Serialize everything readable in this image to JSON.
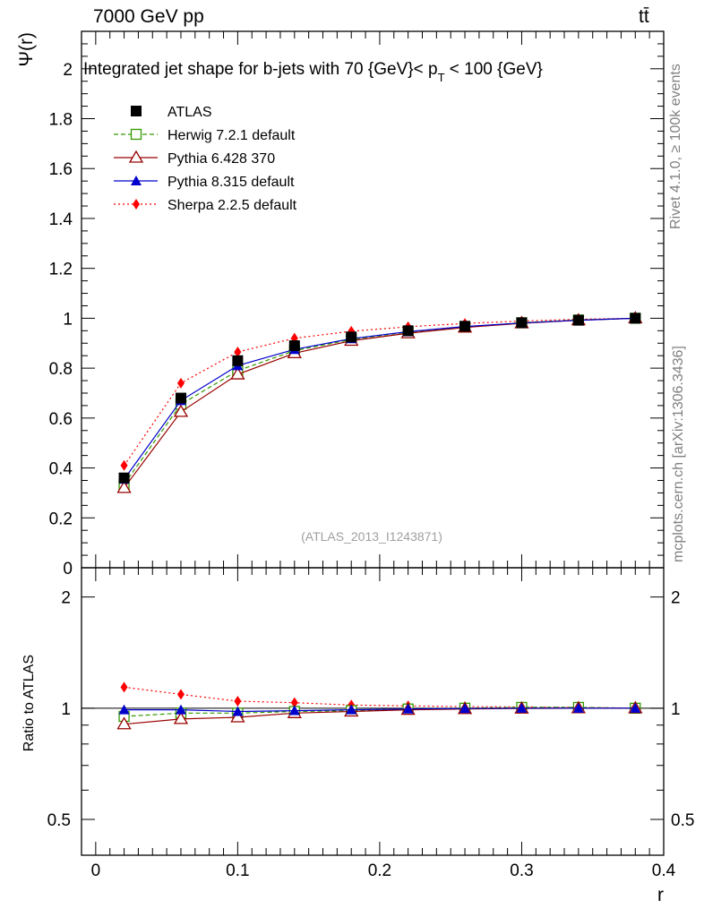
{
  "header": {
    "left": "7000 GeV pp",
    "right": "tt̄"
  },
  "side_labels": {
    "rivet": "Rivet 4.1.0, ≥ 100k events",
    "source": "mcplots.cern.ch [arXiv:1306.3436]"
  },
  "colors": {
    "atlas": "#000000",
    "herwig": "#339900",
    "pythia6": "#990000",
    "pythia8": "#0000cc",
    "sherpa": "#ff0000",
    "watermark": "#a0a0a0"
  },
  "chart_data": [
    {
      "type": "line",
      "title": "Integrated jet shape for b-jets with 70 {GeV}< p_T < 100 {GeV}",
      "title_parts": {
        "before": "Integrated jet shape for b-jets with 70 {GeV}< p",
        "sub": "T",
        "after": " < 100 {GeV}"
      },
      "ylabel": "Ψ(r)",
      "xlabel": "",
      "ylim": [
        0,
        2.15
      ],
      "yticks": [
        0,
        0.2,
        0.4,
        0.6,
        0.8,
        1,
        1.2,
        1.4,
        1.6,
        1.8,
        2
      ],
      "ytick_labels": [
        "0",
        "0.2",
        "0.4",
        "0.6",
        "0.8",
        "1",
        "1.2",
        "1.4",
        "1.6",
        "1.8",
        "2"
      ],
      "xlim": [
        -0.01,
        0.4
      ],
      "watermark": "(ATLAS_2013_I1243871)",
      "legend_position": "top-left",
      "x": [
        0.02,
        0.06,
        0.1,
        0.14,
        0.18,
        0.22,
        0.26,
        0.3,
        0.34,
        0.38
      ],
      "series": [
        {
          "name": "ATLAS",
          "marker": "square",
          "values": [
            0.36,
            0.68,
            0.83,
            0.89,
            0.925,
            0.95,
            0.968,
            0.982,
            0.992,
            1.0
          ]
        },
        {
          "name": "Herwig 7.2.1 default",
          "marker": "open-square",
          "values": [
            0.335,
            0.655,
            0.79,
            0.87,
            0.915,
            0.945,
            0.965,
            0.982,
            0.993,
            1.0
          ]
        },
        {
          "name": "Pythia 6.428 370",
          "marker": "open-triangle",
          "values": [
            0.32,
            0.625,
            0.775,
            0.86,
            0.91,
            0.94,
            0.963,
            0.98,
            0.992,
            1.0
          ]
        },
        {
          "name": "Pythia 8.315 default",
          "marker": "triangle",
          "values": [
            0.355,
            0.67,
            0.81,
            0.875,
            0.918,
            0.946,
            0.967,
            0.981,
            0.992,
            1.0
          ]
        },
        {
          "name": "Sherpa 2.2.5 default",
          "marker": "diamond",
          "values": [
            0.41,
            0.74,
            0.865,
            0.92,
            0.948,
            0.966,
            0.979,
            0.989,
            0.996,
            1.0
          ]
        }
      ]
    },
    {
      "type": "line",
      "title": "",
      "ylabel": "Ratio to ATLAS",
      "xlabel": "r",
      "ylim": [
        0.4,
        2.4
      ],
      "yscale": "log",
      "yticks": [
        0.5,
        1,
        2
      ],
      "ytick_labels": [
        "0.5",
        "1",
        "2"
      ],
      "xlim": [
        -0.01,
        0.4
      ],
      "xticks": [
        0,
        0.1,
        0.2,
        0.3,
        0.4
      ],
      "xtick_labels": [
        "0",
        "0.1",
        "0.2",
        "0.3",
        "0.4"
      ],
      "x": [
        0.02,
        0.06,
        0.1,
        0.14,
        0.18,
        0.22,
        0.26,
        0.3,
        0.34,
        0.38
      ],
      "series": [
        {
          "name": "Herwig 7.2.1 default",
          "marker": "open-square",
          "values": [
            0.95,
            0.97,
            0.97,
            0.98,
            0.985,
            0.995,
            1.0,
            1.005,
            1.005,
            1.0
          ]
        },
        {
          "name": "Pythia 6.428 370",
          "marker": "open-triangle",
          "values": [
            0.905,
            0.935,
            0.945,
            0.97,
            0.98,
            0.99,
            0.995,
            0.998,
            1.0,
            1.0
          ]
        },
        {
          "name": "Pythia 8.315 default",
          "marker": "triangle",
          "values": [
            0.99,
            0.99,
            0.98,
            0.985,
            0.99,
            0.995,
            0.998,
            1.0,
            1.0,
            1.0
          ]
        },
        {
          "name": "Sherpa 2.2.5 default",
          "marker": "diamond",
          "values": [
            1.14,
            1.09,
            1.045,
            1.035,
            1.02,
            1.015,
            1.01,
            1.008,
            1.004,
            1.0
          ]
        }
      ]
    }
  ]
}
